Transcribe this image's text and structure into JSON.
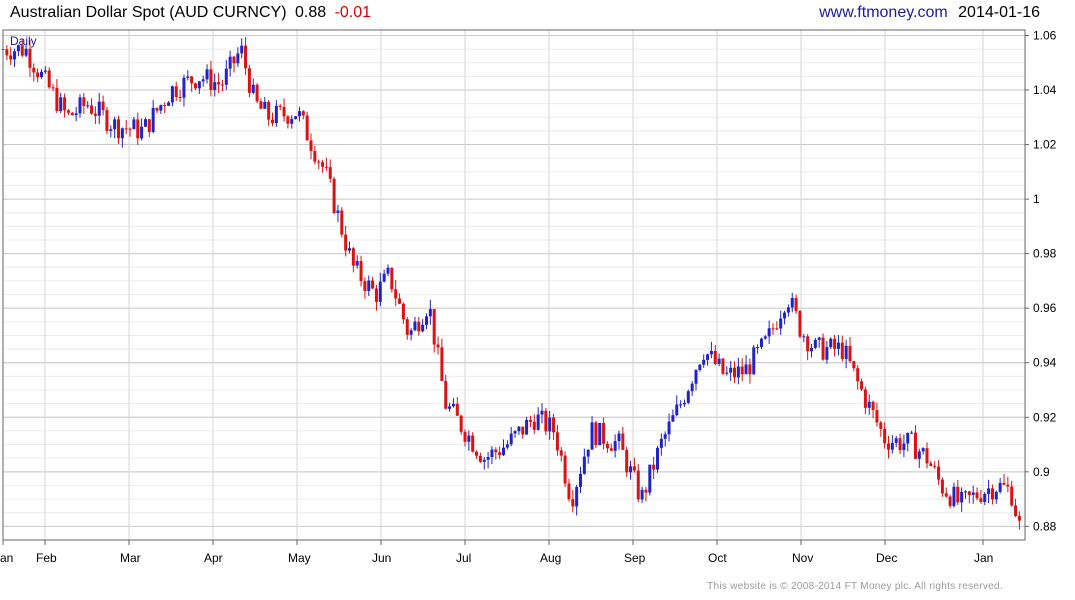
{
  "header": {
    "title": "Australian Dollar Spot (AUD CURNCY)",
    "last": "0.88",
    "change": "-0.01",
    "site": "www.ftmoney.com",
    "date": "2014-01-16"
  },
  "footer": {
    "text": "This website is © 2008-2014 FT Money plc. All rights reserved."
  },
  "chart_data": {
    "type": "candlestick",
    "period_label": "Daily",
    "ylim": [
      0.875,
      1.062
    ],
    "yticks": [
      0.88,
      0.9,
      0.92,
      0.94,
      0.96,
      0.98,
      1,
      1.02,
      1.04,
      1.06
    ],
    "ytick_labels": [
      "0.88",
      "0.9",
      "0.92",
      "0.94",
      "0.96",
      "0.98",
      "1",
      "1.02",
      "1.04",
      "1.06"
    ],
    "xlim": [
      0,
      36.5
    ],
    "xtick_labels": [
      "Jan",
      "Feb",
      "Mar",
      "Apr",
      "May",
      "Jun",
      "Jul",
      "Aug",
      "Sep",
      "Oct",
      "Nov",
      "Dec",
      "Jan"
    ],
    "xtick_positions": [
      0,
      1.5,
      4.5,
      7.5,
      10.5,
      13.5,
      16.5,
      19.5,
      22.5,
      25.5,
      28.5,
      31.5,
      35
    ],
    "grid": true,
    "axis_side": "right",
    "up_color": "#2222cc",
    "down_color": "#dd1111",
    "anchors": [
      [
        0,
        1.055
      ],
      [
        0.8,
        1.055
      ],
      [
        1.5,
        1.043
      ],
      [
        2.3,
        1.03
      ],
      [
        3.0,
        1.035
      ],
      [
        4.0,
        1.027
      ],
      [
        5.0,
        1.025
      ],
      [
        6.0,
        1.04
      ],
      [
        7.0,
        1.045
      ],
      [
        7.8,
        1.042
      ],
      [
        8.5,
        1.055
      ],
      [
        9.0,
        1.035
      ],
      [
        9.5,
        1.03
      ],
      [
        10.5,
        1.032
      ],
      [
        11.5,
        1.01
      ],
      [
        12.5,
        0.975
      ],
      [
        13.3,
        0.965
      ],
      [
        13.8,
        0.972
      ],
      [
        14.5,
        0.95
      ],
      [
        15.2,
        0.962
      ],
      [
        15.8,
        0.925
      ],
      [
        16.5,
        0.915
      ],
      [
        17.2,
        0.905
      ],
      [
        18.0,
        0.91
      ],
      [
        19.0,
        0.92
      ],
      [
        19.7,
        0.915
      ],
      [
        20.3,
        0.89
      ],
      [
        21.0,
        0.915
      ],
      [
        22.0,
        0.91
      ],
      [
        22.8,
        0.89
      ],
      [
        23.5,
        0.91
      ],
      [
        24.2,
        0.925
      ],
      [
        25.0,
        0.945
      ],
      [
        25.8,
        0.935
      ],
      [
        26.5,
        0.937
      ],
      [
        27.3,
        0.948
      ],
      [
        28.0,
        0.965
      ],
      [
        28.5,
        0.952
      ],
      [
        29.0,
        0.945
      ],
      [
        30.0,
        0.945
      ],
      [
        30.5,
        0.933
      ],
      [
        31.5,
        0.912
      ],
      [
        32.5,
        0.91
      ],
      [
        33.0,
        0.905
      ],
      [
        33.5,
        0.895
      ],
      [
        34.2,
        0.888
      ],
      [
        35.0,
        0.893
      ],
      [
        35.5,
        0.895
      ],
      [
        36.0,
        0.893
      ],
      [
        36.3,
        0.88
      ]
    ]
  }
}
